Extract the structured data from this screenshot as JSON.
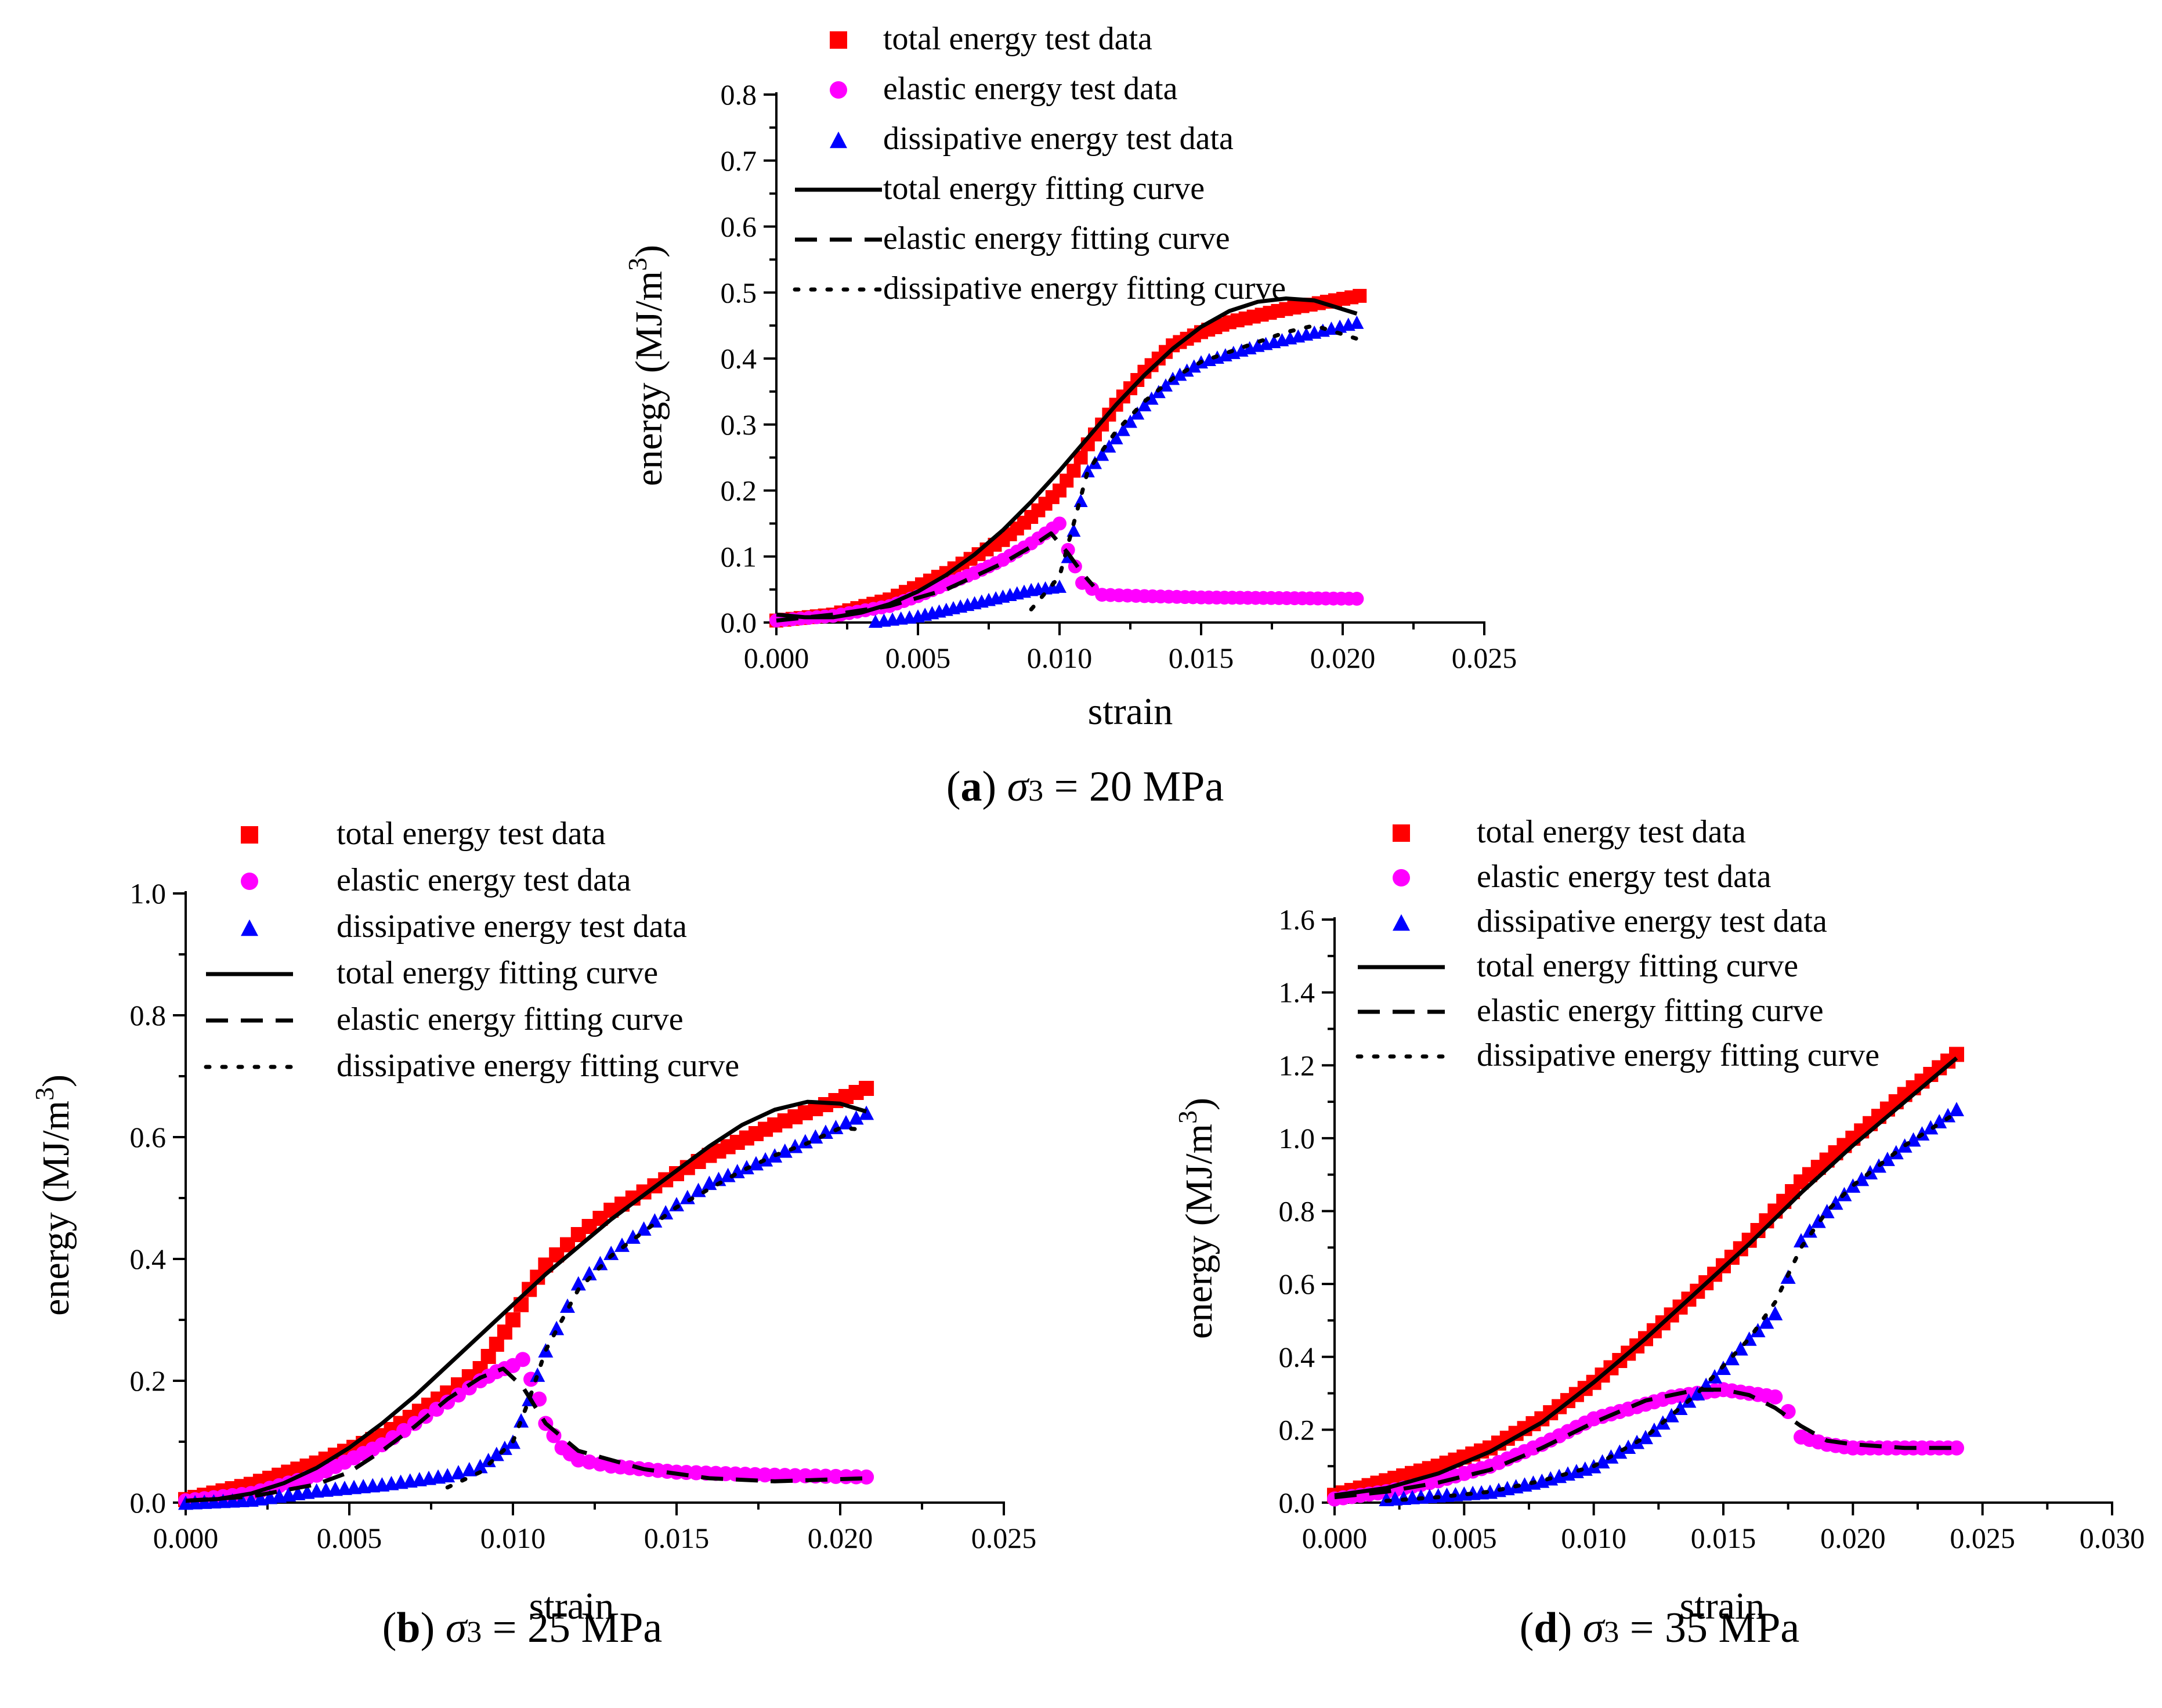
{
  "colors": {
    "total": "#ff0000",
    "elastic": "#ff00ff",
    "dissipative": "#0000ff",
    "fit": "#000000"
  },
  "legend": [
    "total energy test data",
    "elastic energy test data",
    "dissipative energy test data",
    "total energy fitting curve",
    "elastic energy fitting curve",
    "dissipative energy fitting curve"
  ],
  "chart_data": [
    {
      "id": "a",
      "type": "scatter",
      "caption": {
        "letter": "a",
        "sigma": "σ",
        "sub": "3",
        "text": " = 20 MPa"
      },
      "xlabel": "strain",
      "ylabel": "energy (MJ/m",
      "ylabel_sup": "3",
      "xlim": [
        0,
        0.025
      ],
      "ylim": [
        0,
        0.8
      ],
      "xticks": [
        "0.000",
        "0.005",
        "0.010",
        "0.015",
        "0.020",
        "0.025"
      ],
      "yticks": [
        "0.0",
        "0.1",
        "0.2",
        "0.3",
        "0.4",
        "0.5",
        "0.6",
        "0.7",
        "0.8"
      ],
      "series": [
        {
          "name": "total energy test data",
          "kind": "square",
          "x": [
            0,
            0.002,
            0.004,
            0.006,
            0.008,
            0.009,
            0.01,
            0.0105,
            0.011,
            0.012,
            0.013,
            0.014,
            0.015,
            0.016,
            0.018,
            0.0206
          ],
          "y": [
            0.003,
            0.012,
            0.035,
            0.075,
            0.125,
            0.16,
            0.2,
            0.23,
            0.27,
            0.33,
            0.38,
            0.42,
            0.44,
            0.455,
            0.475,
            0.495
          ]
        },
        {
          "name": "elastic energy test data",
          "kind": "circle",
          "x": [
            0,
            0.002,
            0.004,
            0.005,
            0.006,
            0.007,
            0.008,
            0.009,
            0.0095,
            0.01,
            0.0103,
            0.0108,
            0.0115,
            0.013,
            0.015,
            0.0205
          ],
          "y": [
            0.003,
            0.01,
            0.025,
            0.04,
            0.058,
            0.075,
            0.095,
            0.12,
            0.135,
            0.15,
            0.11,
            0.06,
            0.042,
            0.04,
            0.038,
            0.036
          ]
        },
        {
          "name": "dissipative energy test data",
          "kind": "triangle",
          "x": [
            0.0035,
            0.005,
            0.006,
            0.007,
            0.008,
            0.009,
            0.01,
            0.0103,
            0.0105,
            0.011,
            0.012,
            0.013,
            0.014,
            0.015,
            0.017,
            0.019,
            0.0205
          ],
          "y": [
            0.002,
            0.01,
            0.02,
            0.03,
            0.04,
            0.05,
            0.055,
            0.1,
            0.14,
            0.23,
            0.28,
            0.33,
            0.37,
            0.395,
            0.42,
            0.44,
            0.455
          ]
        }
      ],
      "fits": [
        {
          "name": "total energy fitting curve",
          "style": "solid",
          "x": [
            0,
            0.001,
            0.002,
            0.003,
            0.004,
            0.005,
            0.006,
            0.007,
            0.008,
            0.009,
            0.01,
            0.011,
            0.012,
            0.013,
            0.014,
            0.015,
            0.016,
            0.017,
            0.018,
            0.019,
            0.0205
          ],
          "y": [
            0.012,
            0.008,
            0.008,
            0.015,
            0.028,
            0.047,
            0.072,
            0.103,
            0.14,
            0.183,
            0.23,
            0.28,
            0.33,
            0.375,
            0.415,
            0.448,
            0.472,
            0.486,
            0.491,
            0.488,
            0.468
          ]
        },
        {
          "name": "elastic energy fitting curve",
          "style": "dashed",
          "x": [
            0,
            0.002,
            0.004,
            0.006,
            0.008,
            0.009,
            0.0097,
            0.0103,
            0.0108,
            0.0112
          ],
          "y": [
            0.003,
            0.012,
            0.025,
            0.05,
            0.09,
            0.115,
            0.135,
            0.105,
            0.075,
            0.055
          ]
        },
        {
          "name": "dissipative energy fitting curve",
          "style": "dotted",
          "x": [
            0.009,
            0.0095,
            0.01,
            0.0105,
            0.011,
            0.012,
            0.013,
            0.014,
            0.015,
            0.016,
            0.017,
            0.018,
            0.019,
            0.0205
          ],
          "y": [
            0.02,
            0.045,
            0.07,
            0.15,
            0.23,
            0.29,
            0.335,
            0.37,
            0.395,
            0.41,
            0.425,
            0.44,
            0.45,
            0.43
          ]
        }
      ]
    },
    {
      "id": "b",
      "type": "scatter",
      "caption": {
        "letter": "b",
        "sigma": "σ",
        "sub": "3",
        "text": " = 25 MPa"
      },
      "xlabel": "strain",
      "ylabel": "energy (MJ/m",
      "ylabel_sup": "3",
      "xlim": [
        0,
        0.025
      ],
      "ylim": [
        0,
        1.0
      ],
      "xticks": [
        "0.000",
        "0.005",
        "0.010",
        "0.015",
        "0.020",
        "0.025"
      ],
      "yticks": [
        "0.0",
        "0.2",
        "0.4",
        "0.6",
        "0.8",
        "1.0"
      ],
      "series": [
        {
          "name": "total energy test data",
          "kind": "square",
          "x": [
            0,
            0.002,
            0.004,
            0.006,
            0.008,
            0.009,
            0.0095,
            0.01,
            0.0105,
            0.011,
            0.012,
            0.013,
            0.014,
            0.015,
            0.016,
            0.018,
            0.0208
          ],
          "y": [
            0.005,
            0.03,
            0.065,
            0.11,
            0.18,
            0.22,
            0.26,
            0.3,
            0.35,
            0.39,
            0.44,
            0.48,
            0.51,
            0.54,
            0.57,
            0.62,
            0.68
          ]
        },
        {
          "name": "elastic energy test data",
          "kind": "circle",
          "x": [
            0,
            0.002,
            0.004,
            0.006,
            0.007,
            0.008,
            0.009,
            0.0095,
            0.01,
            0.0103,
            0.0108,
            0.011,
            0.0115,
            0.012,
            0.013,
            0.015,
            0.018,
            0.0208
          ],
          "y": [
            0.003,
            0.015,
            0.045,
            0.095,
            0.13,
            0.165,
            0.2,
            0.215,
            0.225,
            0.235,
            0.17,
            0.13,
            0.09,
            0.07,
            0.06,
            0.05,
            0.045,
            0.042
          ]
        },
        {
          "name": "dissipative energy test data",
          "kind": "triangle",
          "x": [
            0,
            0.002,
            0.004,
            0.006,
            0.008,
            0.009,
            0.0095,
            0.01,
            0.0105,
            0.011,
            0.012,
            0.013,
            0.014,
            0.015,
            0.016,
            0.018,
            0.0208
          ],
          "y": [
            0,
            0.005,
            0.02,
            0.03,
            0.045,
            0.06,
            0.08,
            0.1,
            0.17,
            0.25,
            0.36,
            0.41,
            0.45,
            0.49,
            0.525,
            0.57,
            0.64
          ]
        }
      ],
      "fits": [
        {
          "name": "total energy fitting curve",
          "style": "solid",
          "x": [
            0,
            0.001,
            0.002,
            0.003,
            0.004,
            0.005,
            0.006,
            0.007,
            0.008,
            0.009,
            0.01,
            0.011,
            0.012,
            0.013,
            0.014,
            0.015,
            0.016,
            0.017,
            0.018,
            0.019,
            0.02,
            0.0208
          ],
          "y": [
            0.003,
            0.006,
            0.015,
            0.032,
            0.057,
            0.09,
            0.13,
            0.175,
            0.225,
            0.275,
            0.325,
            0.375,
            0.42,
            0.465,
            0.505,
            0.545,
            0.585,
            0.62,
            0.645,
            0.658,
            0.655,
            0.642
          ]
        },
        {
          "name": "elastic energy fitting curve",
          "style": "dashed",
          "x": [
            0,
            0.002,
            0.004,
            0.005,
            0.006,
            0.007,
            0.008,
            0.009,
            0.0097,
            0.0103,
            0.011,
            0.012,
            0.014,
            0.016,
            0.018,
            0.0208
          ],
          "y": [
            0.003,
            0.01,
            0.03,
            0.05,
            0.085,
            0.125,
            0.17,
            0.205,
            0.22,
            0.19,
            0.13,
            0.085,
            0.055,
            0.04,
            0.035,
            0.04
          ]
        },
        {
          "name": "dissipative energy fitting curve",
          "style": "dotted",
          "x": [
            0.008,
            0.009,
            0.01,
            0.0105,
            0.011,
            0.012,
            0.013,
            0.014,
            0.015,
            0.016,
            0.017,
            0.018,
            0.019,
            0.02,
            0.0208
          ],
          "y": [
            0.025,
            0.05,
            0.1,
            0.17,
            0.25,
            0.35,
            0.405,
            0.445,
            0.485,
            0.515,
            0.545,
            0.57,
            0.59,
            0.615,
            0.612
          ]
        }
      ]
    },
    {
      "id": "d",
      "type": "scatter",
      "caption": {
        "letter": "d",
        "sigma": "σ",
        "sub": "3",
        "text": " = 35 MPa"
      },
      "xlabel": "strain",
      "ylabel": "energy (MJ/m",
      "ylabel_sup": "3",
      "xlim": [
        0,
        0.03
      ],
      "ylim": [
        0,
        1.6
      ],
      "xticks": [
        "0.000",
        "0.005",
        "0.010",
        "0.015",
        "0.020",
        "0.025",
        "0.030"
      ],
      "yticks": [
        "0.0",
        "0.2",
        "0.4",
        "0.6",
        "0.8",
        "1.0",
        "1.2",
        "1.4",
        "1.6"
      ],
      "series": [
        {
          "name": "total energy test data",
          "kind": "square",
          "x": [
            0,
            0.002,
            0.004,
            0.006,
            0.008,
            0.01,
            0.012,
            0.014,
            0.016,
            0.017,
            0.018,
            0.02,
            0.022,
            0.024
          ],
          "y": [
            0.02,
            0.06,
            0.1,
            0.15,
            0.23,
            0.33,
            0.45,
            0.58,
            0.72,
            0.8,
            0.88,
            1.0,
            1.12,
            1.23
          ]
        },
        {
          "name": "elastic energy test data",
          "kind": "circle",
          "x": [
            0,
            0.002,
            0.004,
            0.006,
            0.008,
            0.01,
            0.012,
            0.013,
            0.014,
            0.015,
            0.016,
            0.017,
            0.0175,
            0.018,
            0.019,
            0.02,
            0.022,
            0.024
          ],
          "y": [
            0.01,
            0.03,
            0.06,
            0.1,
            0.16,
            0.23,
            0.27,
            0.29,
            0.3,
            0.31,
            0.3,
            0.29,
            0.25,
            0.18,
            0.16,
            0.15,
            0.15,
            0.15
          ]
        },
        {
          "name": "dissipative energy test data",
          "kind": "triangle",
          "x": [
            0.002,
            0.004,
            0.006,
            0.008,
            0.01,
            0.012,
            0.014,
            0.015,
            0.016,
            0.017,
            0.0175,
            0.018,
            0.019,
            0.02,
            0.022,
            0.024
          ],
          "y": [
            0.01,
            0.02,
            0.03,
            0.06,
            0.1,
            0.18,
            0.3,
            0.37,
            0.45,
            0.52,
            0.62,
            0.72,
            0.8,
            0.87,
            0.98,
            1.08
          ]
        }
      ],
      "fits": [
        {
          "name": "total energy fitting curve",
          "style": "solid",
          "x": [
            0,
            0.002,
            0.004,
            0.006,
            0.008,
            0.01,
            0.012,
            0.014,
            0.016,
            0.018,
            0.02,
            0.022,
            0.024
          ],
          "y": [
            0.02,
            0.04,
            0.08,
            0.14,
            0.22,
            0.33,
            0.45,
            0.58,
            0.71,
            0.85,
            0.98,
            1.1,
            1.22
          ]
        },
        {
          "name": "elastic energy fitting curve",
          "style": "dashed",
          "x": [
            0,
            0.002,
            0.004,
            0.006,
            0.008,
            0.01,
            0.012,
            0.014,
            0.015,
            0.016,
            0.017,
            0.018,
            0.019,
            0.02,
            0.022,
            0.024
          ],
          "y": [
            0.015,
            0.03,
            0.055,
            0.09,
            0.15,
            0.22,
            0.28,
            0.31,
            0.31,
            0.295,
            0.26,
            0.21,
            0.17,
            0.16,
            0.15,
            0.15
          ]
        },
        {
          "name": "dissipative energy fitting curve",
          "style": "dotted",
          "x": [
            0.002,
            0.004,
            0.006,
            0.008,
            0.01,
            0.012,
            0.014,
            0.016,
            0.017,
            0.018,
            0.019,
            0.02,
            0.022,
            0.024
          ],
          "y": [
            0.005,
            0.015,
            0.03,
            0.06,
            0.1,
            0.18,
            0.3,
            0.45,
            0.55,
            0.7,
            0.8,
            0.87,
            0.98,
            1.07
          ]
        }
      ]
    }
  ]
}
